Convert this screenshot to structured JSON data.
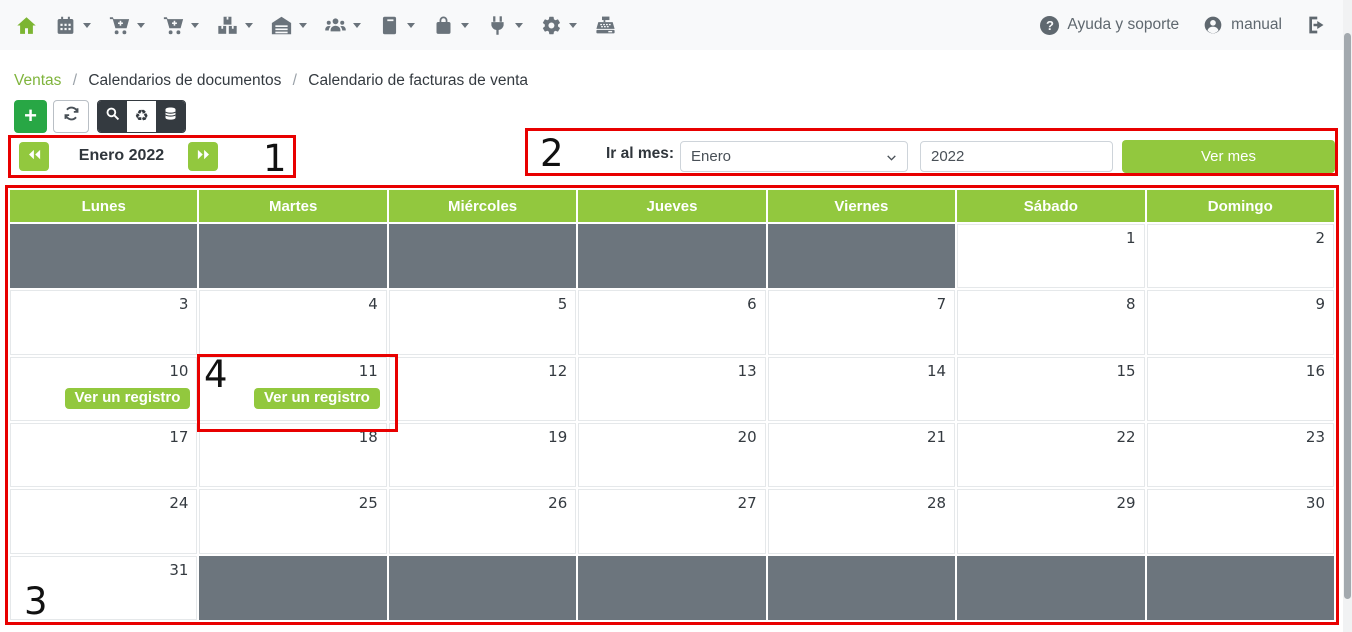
{
  "navbar": {
    "menu": [
      {
        "icon": "home-icon",
        "caret": false
      },
      {
        "icon": "calendar-icon",
        "caret": true
      },
      {
        "icon": "cart-plus-icon",
        "caret": true
      },
      {
        "icon": "cart-plus2-icon",
        "caret": true
      },
      {
        "icon": "boxes-icon",
        "caret": true
      },
      {
        "icon": "warehouse-icon",
        "caret": true
      },
      {
        "icon": "users-icon",
        "caret": true
      },
      {
        "icon": "ledger-icon",
        "caret": true
      },
      {
        "icon": "shopping-bag-icon",
        "caret": true
      },
      {
        "icon": "plug-icon",
        "caret": true
      },
      {
        "icon": "gear-icon",
        "caret": true
      },
      {
        "icon": "cash-register-icon",
        "caret": false
      }
    ],
    "help_label": "Ayuda y soporte",
    "user_label": "manual"
  },
  "breadcrumb": {
    "items": [
      "Ventas",
      "Calendarios de documentos",
      "Calendario de facturas de venta"
    ],
    "separator": "/"
  },
  "toolbar": {
    "add_label": "+"
  },
  "month_nav": {
    "current": "Enero 2022"
  },
  "goto_month": {
    "label": "Ir al mes:",
    "month_value": "Enero",
    "year_value": "2022",
    "button_label": "Ver mes"
  },
  "calendar": {
    "weekdays": [
      "Lunes",
      "Martes",
      "Miércoles",
      "Jueves",
      "Viernes",
      "Sábado",
      "Domingo"
    ],
    "badge_label": "Ver un registro",
    "weeks": [
      [
        {
          "out": true
        },
        {
          "out": true
        },
        {
          "out": true
        },
        {
          "out": true
        },
        {
          "out": true
        },
        {
          "day": "1"
        },
        {
          "day": "2"
        }
      ],
      [
        {
          "day": "3"
        },
        {
          "day": "4"
        },
        {
          "day": "5"
        },
        {
          "day": "6"
        },
        {
          "day": "7"
        },
        {
          "day": "8"
        },
        {
          "day": "9"
        }
      ],
      [
        {
          "day": "10",
          "badge": true
        },
        {
          "day": "11",
          "badge": true
        },
        {
          "day": "12"
        },
        {
          "day": "13"
        },
        {
          "day": "14"
        },
        {
          "day": "15"
        },
        {
          "day": "16"
        }
      ],
      [
        {
          "day": "17"
        },
        {
          "day": "18"
        },
        {
          "day": "19"
        },
        {
          "day": "20"
        },
        {
          "day": "21"
        },
        {
          "day": "22"
        },
        {
          "day": "23"
        }
      ],
      [
        {
          "day": "24"
        },
        {
          "day": "25"
        },
        {
          "day": "26"
        },
        {
          "day": "27"
        },
        {
          "day": "28"
        },
        {
          "day": "29"
        },
        {
          "day": "30"
        }
      ],
      [
        {
          "day": "31"
        },
        {
          "out": true
        },
        {
          "out": true
        },
        {
          "out": true
        },
        {
          "out": true
        },
        {
          "out": true
        },
        {
          "out": true
        }
      ]
    ]
  },
  "annotations": {
    "n1": "1",
    "n2": "2",
    "n3": "3",
    "n4": "4"
  },
  "colors": {
    "accent_green": "#92c83e",
    "success_green": "#28a745",
    "out_cell_gray": "#6c757d",
    "annotation_red": "#e80000",
    "dark_text": "#343a40"
  }
}
